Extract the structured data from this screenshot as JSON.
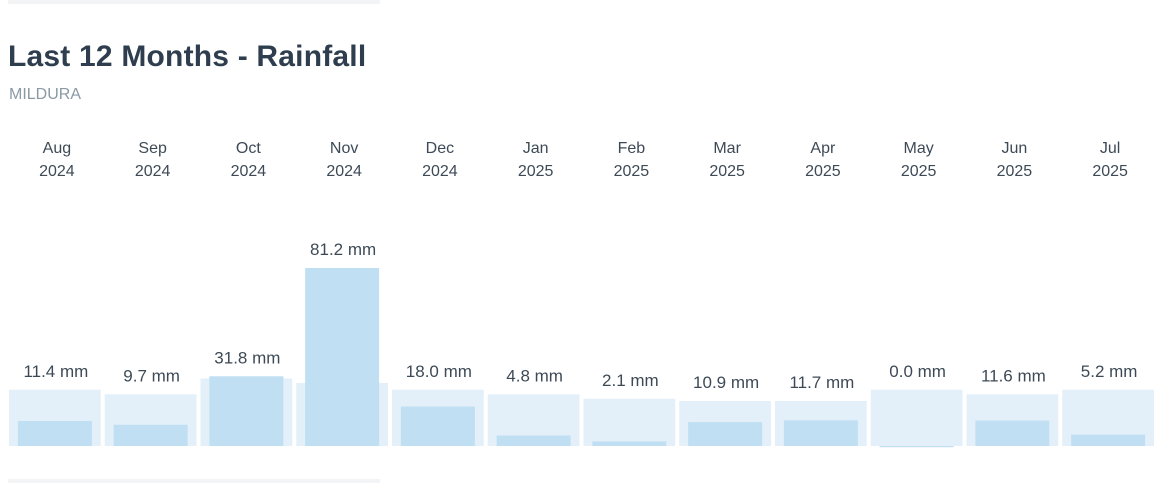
{
  "header": {
    "title": "Last 12 Months - Rainfall",
    "subtitle": "MILDURA"
  },
  "colors": {
    "bar": "#c0dff3",
    "bar_background": "#e3f0fa",
    "text": "#3d4a56",
    "title": "#2e3e4e",
    "subtitle": "#8a99a6"
  },
  "chart_data": {
    "type": "bar",
    "title": "Last 12 Months - Rainfall",
    "subtitle": "MILDURA",
    "unit": "mm",
    "categories": [
      {
        "month": "Aug",
        "year": "2024"
      },
      {
        "month": "Sep",
        "year": "2024"
      },
      {
        "month": "Oct",
        "year": "2024"
      },
      {
        "month": "Nov",
        "year": "2024"
      },
      {
        "month": "Dec",
        "year": "2024"
      },
      {
        "month": "Jan",
        "year": "2025"
      },
      {
        "month": "Feb",
        "year": "2025"
      },
      {
        "month": "Mar",
        "year": "2025"
      },
      {
        "month": "Apr",
        "year": "2025"
      },
      {
        "month": "May",
        "year": "2025"
      },
      {
        "month": "Jun",
        "year": "2025"
      },
      {
        "month": "Jul",
        "year": "2025"
      }
    ],
    "values": [
      11.4,
      9.7,
      31.8,
      81.2,
      18.0,
      4.8,
      2.1,
      10.9,
      11.7,
      0.0,
      11.6,
      5.2
    ],
    "value_labels": [
      "11.4 mm",
      "9.7 mm",
      "31.8 mm",
      "81.2 mm",
      "18.0 mm",
      "4.8 mm",
      "2.1 mm",
      "10.9 mm",
      "11.7 mm",
      "0.0 mm",
      "11.6 mm",
      "5.2 mm"
    ],
    "background_bars": "average",
    "background_values": [
      25,
      23,
      30,
      28,
      25,
      23,
      21,
      20,
      20,
      25,
      23,
      25
    ],
    "ylim": [
      0,
      81.2
    ],
    "grid": false,
    "legend": "none"
  }
}
